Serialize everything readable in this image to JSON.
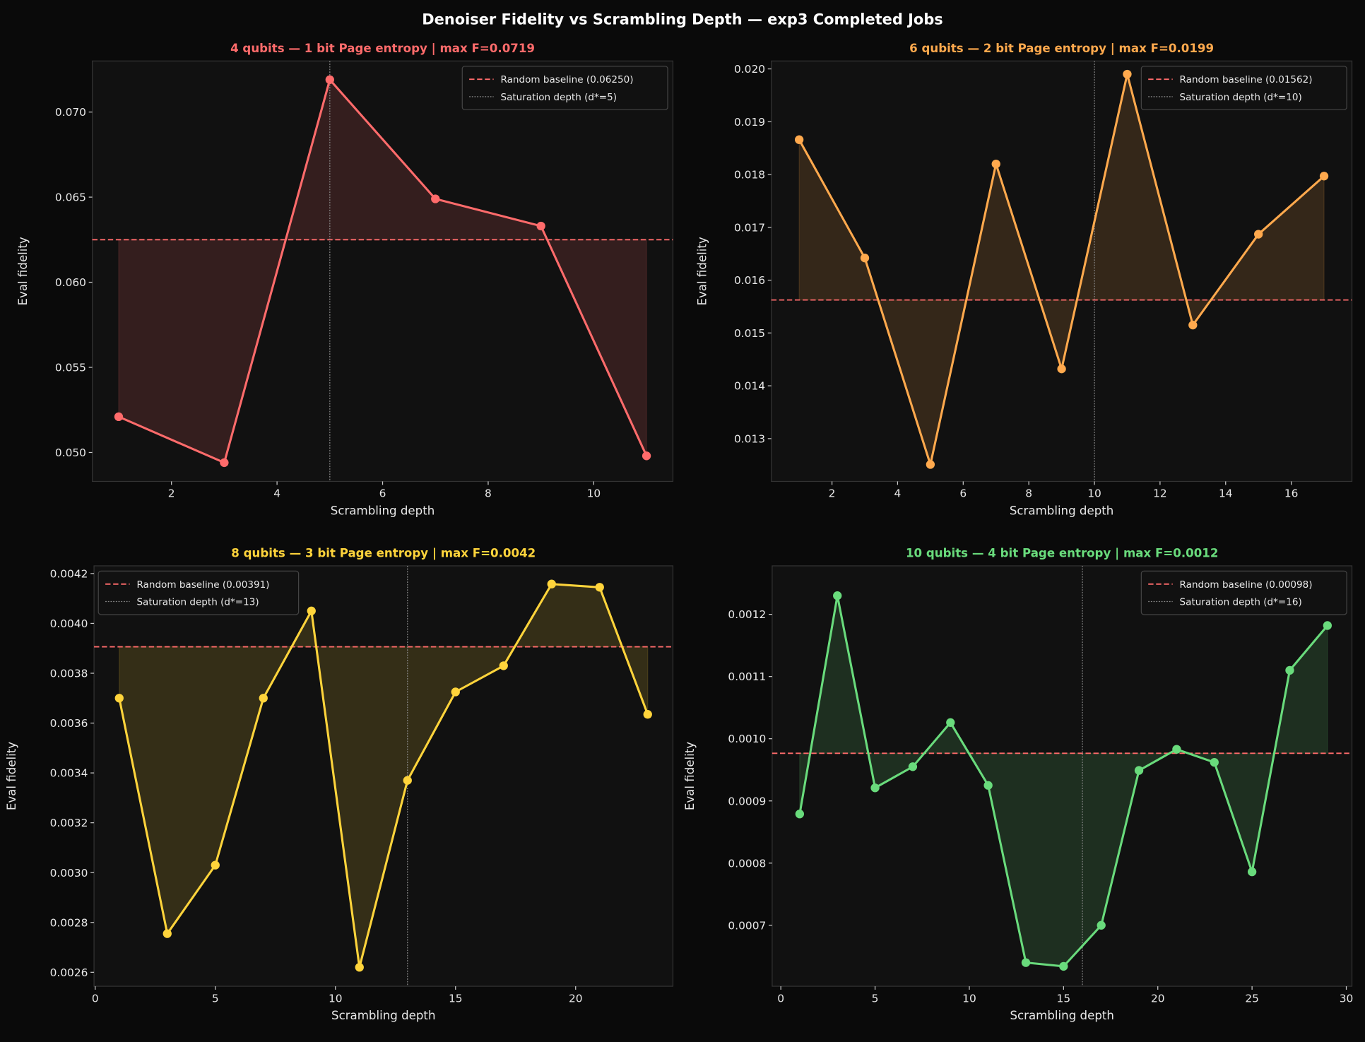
{
  "title": "Denoiser Fidelity vs Scrambling Depth — exp3 Completed Jobs",
  "chart_data": [
    {
      "type": "line",
      "title": "4 qubits — 1 bit Page entropy | max F=0.0719",
      "color": "#ff6b6b",
      "xlabel": "Scrambling depth",
      "ylabel": "Eval fidelity",
      "x": [
        1,
        3,
        5,
        7,
        9,
        11
      ],
      "y": [
        0.0521,
        0.0494,
        0.0719,
        0.0649,
        0.0633,
        0.0498
      ],
      "baseline": 0.0625,
      "baseline_label": "Random baseline (0.06250)",
      "saturation_depth": 5,
      "saturation_label": "Saturation depth (d*=5)",
      "xlim": [
        0.5,
        11.5
      ],
      "ylim": [
        0.0483,
        0.073
      ],
      "xticks": [
        2,
        4,
        6,
        8,
        10
      ],
      "xtick_labels": [
        "2",
        "4",
        "6",
        "8",
        "10"
      ],
      "yticks": [
        0.05,
        0.055,
        0.06,
        0.065,
        0.07
      ],
      "ytick_labels": [
        "0.050",
        "0.055",
        "0.060",
        "0.065",
        "0.070"
      ],
      "legend": "upper-right",
      "grid": false
    },
    {
      "type": "line",
      "title": "6 qubits — 2 bit Page entropy | max F=0.0199",
      "color": "#ffa94d",
      "xlabel": "Scrambling depth",
      "ylabel": "Eval fidelity",
      "x": [
        1,
        3,
        5,
        7,
        9,
        11,
        13,
        15,
        17
      ],
      "y": [
        0.01866,
        0.01642,
        0.01251,
        0.0182,
        0.01432,
        0.0199,
        0.01515,
        0.01687,
        0.01797
      ],
      "baseline": 0.015625,
      "baseline_label": "Random baseline (0.01562)",
      "saturation_depth": 10,
      "saturation_label": "Saturation depth (d*=10)",
      "xlim": [
        0.15,
        17.85
      ],
      "ylim": [
        0.01219,
        0.02015
      ],
      "xticks": [
        2,
        4,
        6,
        8,
        10,
        12,
        14,
        16
      ],
      "xtick_labels": [
        "2",
        "4",
        "6",
        "8",
        "10",
        "12",
        "14",
        "16"
      ],
      "yticks": [
        0.013,
        0.014,
        0.015,
        0.016,
        0.017,
        0.018,
        0.019,
        0.02
      ],
      "ytick_labels": [
        "0.013",
        "0.014",
        "0.015",
        "0.016",
        "0.017",
        "0.018",
        "0.019",
        "0.020"
      ],
      "legend": "upper-right",
      "grid": false
    },
    {
      "type": "line",
      "title": "8 qubits — 3 bit Page entropy | max F=0.0042",
      "color": "#ffd43b",
      "xlabel": "Scrambling depth",
      "ylabel": "Eval fidelity",
      "x": [
        1,
        3,
        5,
        7,
        9,
        11,
        13,
        15,
        17,
        19,
        21,
        23
      ],
      "y": [
        0.0037,
        0.002755,
        0.00303,
        0.0037,
        0.00405,
        0.00262,
        0.00337,
        0.003725,
        0.00383,
        0.004158,
        0.004145,
        0.003635
      ],
      "baseline": 0.00390625,
      "baseline_label": "Random baseline (0.00391)",
      "saturation_depth": 13,
      "saturation_label": "Saturation depth (d*=13)",
      "xlim": [
        -0.05,
        24.05
      ],
      "ylim": [
        0.002544,
        0.004231
      ],
      "xticks": [
        0,
        5,
        10,
        15,
        20
      ],
      "xtick_labels": [
        "0",
        "5",
        "10",
        "15",
        "20"
      ],
      "yticks": [
        0.0026,
        0.0028,
        0.003,
        0.0032,
        0.0034,
        0.0036,
        0.0038,
        0.004,
        0.0042
      ],
      "ytick_labels": [
        "0.0026",
        "0.0028",
        "0.0030",
        "0.0032",
        "0.0034",
        "0.0036",
        "0.0038",
        "0.0040",
        "0.0042"
      ],
      "legend": "upper-left",
      "grid": false
    },
    {
      "type": "line",
      "title": "10 qubits — 4 bit Page entropy | max F=0.0012",
      "color": "#69db7c",
      "xlabel": "Scrambling depth",
      "ylabel": "Eval fidelity",
      "x": [
        1,
        3,
        5,
        7,
        9,
        11,
        13,
        15,
        17,
        19,
        21,
        23,
        25,
        27,
        29
      ],
      "y": [
        0.000879,
        0.00123,
        0.000921,
        0.000955,
        0.001026,
        0.000925,
        0.00064,
        0.000634,
        0.0007,
        0.000949,
        0.000983,
        0.000962,
        0.000786,
        0.00111,
        0.001182
      ],
      "baseline": 0.0009766,
      "baseline_label": "Random baseline (0.00098)",
      "saturation_depth": 16,
      "saturation_label": "Saturation depth (d*=16)",
      "xlim": [
        -0.46,
        30.3
      ],
      "ylim": [
        0.000602,
        0.001278
      ],
      "xticks": [
        0,
        5,
        10,
        15,
        20,
        25,
        30
      ],
      "xtick_labels": [
        "0",
        "5",
        "10",
        "15",
        "20",
        "25",
        "30"
      ],
      "yticks": [
        0.0007,
        0.0008,
        0.0009,
        0.001,
        0.0011,
        0.0012
      ],
      "ytick_labels": [
        "0.0007",
        "0.0008",
        "0.0009",
        "0.0010",
        "0.0011",
        "0.0012"
      ],
      "legend": "upper-right",
      "grid": false
    }
  ]
}
